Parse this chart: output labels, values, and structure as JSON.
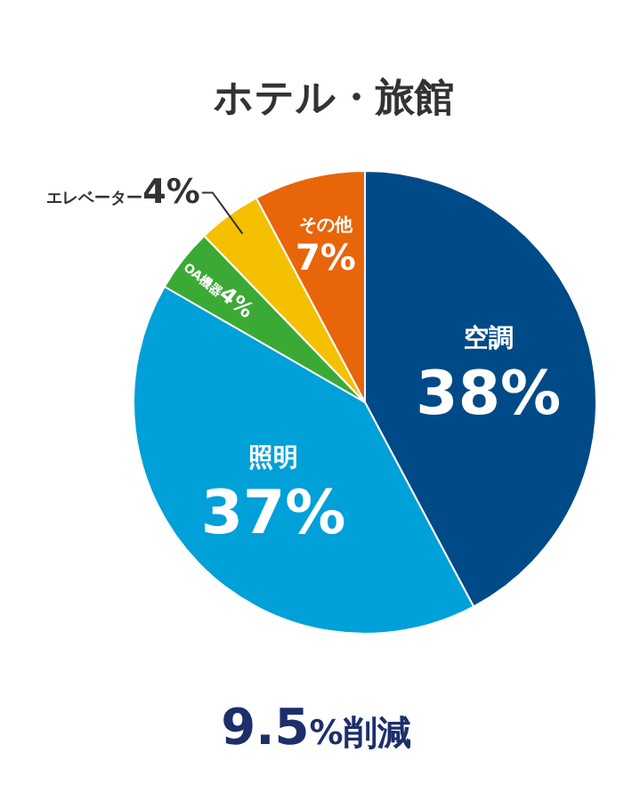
{
  "chart_data": {
    "type": "pie",
    "title": "ホテル・旅館",
    "categories": [
      "空調",
      "照明",
      "OA機器",
      "エレベーター",
      "その他"
    ],
    "values": [
      38,
      37,
      4,
      4,
      7
    ],
    "value_labels": [
      "38%",
      "37%",
      "4%",
      "4%",
      "7%"
    ],
    "colors": [
      "#004a87",
      "#00a0d8",
      "#3aaa35",
      "#f5c000",
      "#e8650a"
    ],
    "annotations": [
      "9.5%削減"
    ]
  }
}
